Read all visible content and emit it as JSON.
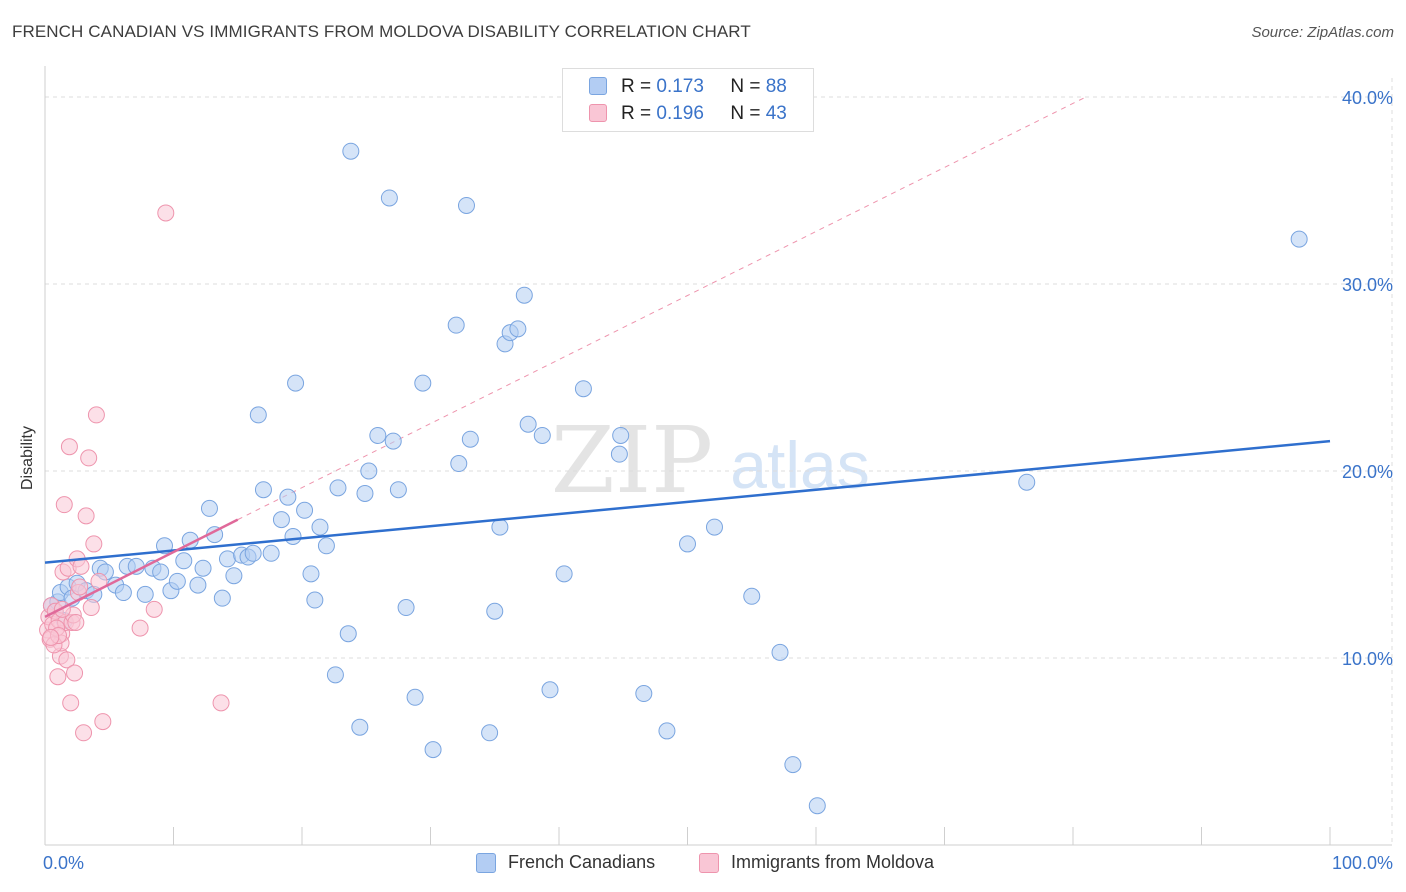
{
  "header": {
    "title": "FRENCH CANADIAN VS IMMIGRANTS FROM MOLDOVA DISABILITY CORRELATION CHART",
    "source": "Source: ZipAtlas.com"
  },
  "legend_stats": {
    "blue": {
      "r_label": "R =",
      "r_value": "0.173",
      "n_label": "N =",
      "n_value": "88"
    },
    "pink": {
      "r_label": "R =",
      "r_value": "0.196",
      "n_label": "N =",
      "n_value": "43"
    }
  },
  "colors": {
    "blue_fill": "#b3cdf3",
    "blue_stroke": "#7aa5e0",
    "blue_line": "#2f6fce",
    "pink_fill": "#f9c6d5",
    "pink_stroke": "#ee94ad",
    "pink_line": "#e0699a",
    "grid": "#dddddd",
    "tick_label": "#3a73c9"
  },
  "watermark": {
    "part1": "ZIP",
    "part2": "atlas"
  },
  "chart_data": {
    "type": "scatter",
    "title": "FRENCH CANADIAN VS IMMIGRANTS FROM MOLDOVA DISABILITY CORRELATION CHART",
    "xlabel": "",
    "ylabel": "Disability",
    "xlim": [
      0,
      100
    ],
    "ylim": [
      0,
      40
    ],
    "x_tick_labels": [
      "0.0%",
      "100.0%"
    ],
    "y_ticks": [
      10,
      20,
      30,
      40
    ],
    "y_tick_labels": [
      "10.0%",
      "20.0%",
      "30.0%",
      "40.0%"
    ],
    "grid": true,
    "legend_position": "bottom",
    "series": [
      {
        "name": "French Canadians",
        "color": "blue",
        "points": [
          [
            0.5,
            12.8
          ],
          [
            0.8,
            12.5
          ],
          [
            1.0,
            13.0
          ],
          [
            1.2,
            13.5
          ],
          [
            1.5,
            12.0
          ],
          [
            1.8,
            13.8
          ],
          [
            2.1,
            13.2
          ],
          [
            2.5,
            14.0
          ],
          [
            3.2,
            13.6
          ],
          [
            3.8,
            13.4
          ],
          [
            4.3,
            14.8
          ],
          [
            4.7,
            14.6
          ],
          [
            5.5,
            13.9
          ],
          [
            6.1,
            13.5
          ],
          [
            6.4,
            14.9
          ],
          [
            7.1,
            14.9
          ],
          [
            7.8,
            13.4
          ],
          [
            8.4,
            14.8
          ],
          [
            9.0,
            14.6
          ],
          [
            9.3,
            16.0
          ],
          [
            9.8,
            13.6
          ],
          [
            10.3,
            14.1
          ],
          [
            10.8,
            15.2
          ],
          [
            11.3,
            16.3
          ],
          [
            11.9,
            13.9
          ],
          [
            12.3,
            14.8
          ],
          [
            12.8,
            18.0
          ],
          [
            13.2,
            16.6
          ],
          [
            13.8,
            13.2
          ],
          [
            14.2,
            15.3
          ],
          [
            14.7,
            14.4
          ],
          [
            15.3,
            15.5
          ],
          [
            15.8,
            15.4
          ],
          [
            16.2,
            15.6
          ],
          [
            16.6,
            23.0
          ],
          [
            17.0,
            19.0
          ],
          [
            17.6,
            15.6
          ],
          [
            18.4,
            17.4
          ],
          [
            18.9,
            18.6
          ],
          [
            19.3,
            16.5
          ],
          [
            19.5,
            24.7
          ],
          [
            20.2,
            17.9
          ],
          [
            20.7,
            14.5
          ],
          [
            21.0,
            13.1
          ],
          [
            21.4,
            17.0
          ],
          [
            21.9,
            16.0
          ],
          [
            22.6,
            9.1
          ],
          [
            22.8,
            19.1
          ],
          [
            23.8,
            37.1
          ],
          [
            23.6,
            11.3
          ],
          [
            24.5,
            6.3
          ],
          [
            24.9,
            18.8
          ],
          [
            25.2,
            20.0
          ],
          [
            25.9,
            21.9
          ],
          [
            26.8,
            34.6
          ],
          [
            27.1,
            21.6
          ],
          [
            27.5,
            19.0
          ],
          [
            28.1,
            12.7
          ],
          [
            28.8,
            7.9
          ],
          [
            29.4,
            24.7
          ],
          [
            30.2,
            5.1
          ],
          [
            32.0,
            27.8
          ],
          [
            32.2,
            20.4
          ],
          [
            32.8,
            34.2
          ],
          [
            33.1,
            21.7
          ],
          [
            34.6,
            6.0
          ],
          [
            35.0,
            12.5
          ],
          [
            35.4,
            17.0
          ],
          [
            35.8,
            26.8
          ],
          [
            36.2,
            27.4
          ],
          [
            36.8,
            27.6
          ],
          [
            37.3,
            29.4
          ],
          [
            37.6,
            22.5
          ],
          [
            38.7,
            21.9
          ],
          [
            39.3,
            8.3
          ],
          [
            40.4,
            14.5
          ],
          [
            41.9,
            24.4
          ],
          [
            44.7,
            20.9
          ],
          [
            44.8,
            21.9
          ],
          [
            46.6,
            8.1
          ],
          [
            48.4,
            6.1
          ],
          [
            50.0,
            16.1
          ],
          [
            52.1,
            17.0
          ],
          [
            55.0,
            13.3
          ],
          [
            57.2,
            10.3
          ],
          [
            58.2,
            4.3
          ],
          [
            60.1,
            2.1
          ],
          [
            76.4,
            19.4
          ],
          [
            97.6,
            32.4
          ]
        ],
        "trend": {
          "x0": 0,
          "y0": 15.1,
          "x1": 100,
          "y1": 21.6
        }
      },
      {
        "name": "Immigrants from Moldova",
        "color": "pink",
        "points": [
          [
            0.2,
            11.5
          ],
          [
            0.3,
            12.2
          ],
          [
            0.4,
            11.0
          ],
          [
            0.5,
            12.8
          ],
          [
            0.6,
            11.8
          ],
          [
            0.8,
            12.5
          ],
          [
            1.0,
            9.0
          ],
          [
            1.1,
            12.0
          ],
          [
            1.2,
            10.1
          ],
          [
            1.3,
            11.3
          ],
          [
            1.4,
            14.6
          ],
          [
            1.5,
            18.2
          ],
          [
            1.6,
            11.9
          ],
          [
            1.7,
            9.9
          ],
          [
            1.8,
            14.8
          ],
          [
            1.9,
            21.3
          ],
          [
            2.0,
            7.6
          ],
          [
            2.1,
            11.9
          ],
          [
            2.3,
            9.2
          ],
          [
            2.5,
            15.3
          ],
          [
            2.6,
            13.5
          ],
          [
            2.8,
            14.9
          ],
          [
            3.0,
            6.0
          ],
          [
            3.2,
            17.6
          ],
          [
            3.4,
            20.7
          ],
          [
            3.6,
            12.7
          ],
          [
            3.8,
            16.1
          ],
          [
            4.0,
            23.0
          ],
          [
            4.2,
            14.1
          ],
          [
            4.5,
            6.6
          ],
          [
            0.9,
            11.6
          ],
          [
            1.25,
            10.8
          ],
          [
            0.7,
            10.7
          ],
          [
            2.2,
            12.3
          ],
          [
            1.05,
            11.2
          ],
          [
            7.4,
            11.6
          ],
          [
            8.5,
            12.6
          ],
          [
            9.4,
            33.8
          ],
          [
            13.7,
            7.6
          ],
          [
            2.7,
            13.8
          ],
          [
            0.45,
            11.1
          ],
          [
            1.35,
            12.6
          ],
          [
            2.4,
            11.9
          ]
        ],
        "trend": {
          "x0": 0,
          "y0": 12.2,
          "x1": 15,
          "y1": 17.4
        },
        "trend_extension": {
          "x0": 15,
          "y0": 17.4,
          "x1": 81,
          "y1": 40
        }
      }
    ]
  }
}
